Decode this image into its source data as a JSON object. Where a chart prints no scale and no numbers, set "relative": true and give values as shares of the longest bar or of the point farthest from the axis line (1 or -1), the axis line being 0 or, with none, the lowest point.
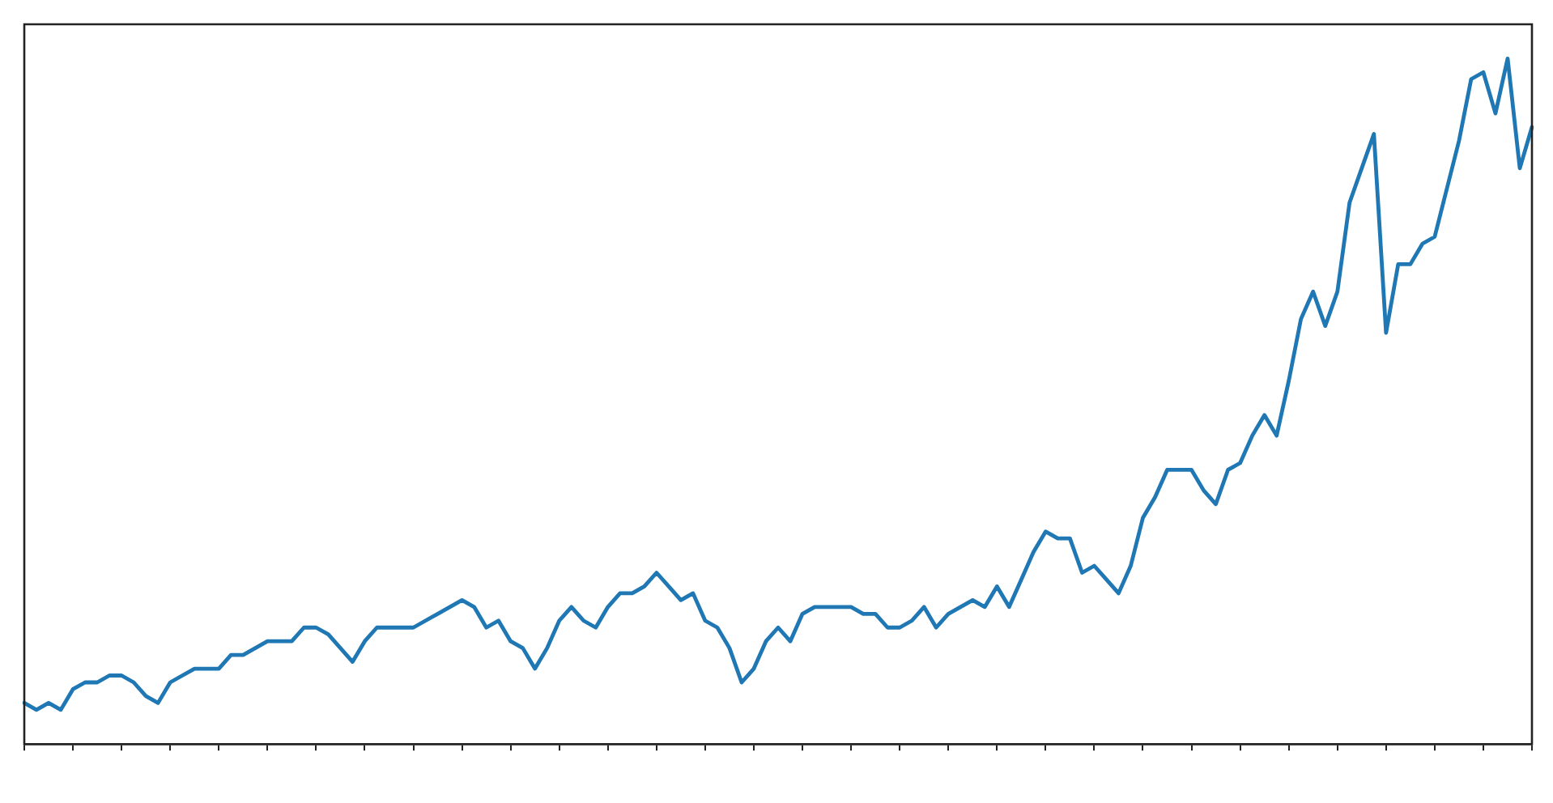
{
  "chart_data": {
    "type": "line",
    "relative": true,
    "legend": false,
    "grid": false,
    "marker": "none",
    "line_style": "solid",
    "categories": [
      null,
      null,
      null,
      null,
      null,
      null,
      null,
      null,
      null,
      null,
      null,
      null,
      null,
      null,
      null,
      null,
      null,
      null,
      null,
      null,
      null,
      null,
      null,
      null,
      null,
      null,
      null,
      null,
      null,
      null,
      null,
      null,
      null,
      null,
      null,
      null,
      null,
      null,
      null,
      null,
      null,
      null,
      null,
      null,
      null,
      null,
      null,
      null,
      null,
      null,
      null,
      null,
      null,
      null,
      null,
      null,
      null,
      null,
      null,
      null,
      null,
      null,
      null,
      null,
      null,
      null,
      null,
      null,
      null,
      null,
      null,
      null,
      null,
      null,
      null,
      null,
      null,
      null,
      null,
      null,
      null,
      null,
      null,
      null,
      null,
      null,
      null,
      null,
      null,
      null,
      null,
      null,
      null,
      null,
      null,
      null,
      null,
      null,
      null,
      null,
      null,
      null,
      null,
      null,
      null,
      null,
      null,
      null,
      null,
      null,
      null,
      null,
      null,
      null,
      null,
      null,
      null,
      null,
      null,
      null,
      null,
      null,
      null,
      null,
      null
    ],
    "series": [
      {
        "color": "#1f77b4",
        "values": [
          0.06,
          0.05,
          0.06,
          0.05,
          0.08,
          0.09,
          0.09,
          0.1,
          0.1,
          0.09,
          0.07,
          0.06,
          0.09,
          0.1,
          0.11,
          0.11,
          0.11,
          0.13,
          0.13,
          0.14,
          0.15,
          0.15,
          0.15,
          0.17,
          0.17,
          0.16,
          0.14,
          0.12,
          0.15,
          0.17,
          0.17,
          0.17,
          0.17,
          0.18,
          0.19,
          0.2,
          0.21,
          0.2,
          0.17,
          0.18,
          0.15,
          0.14,
          0.11,
          0.14,
          0.18,
          0.2,
          0.18,
          0.17,
          0.2,
          0.22,
          0.22,
          0.23,
          0.25,
          0.23,
          0.21,
          0.22,
          0.18,
          0.17,
          0.14,
          0.09,
          0.11,
          0.15,
          0.17,
          0.15,
          0.19,
          0.2,
          0.2,
          0.2,
          0.2,
          0.19,
          0.19,
          0.17,
          0.17,
          0.18,
          0.2,
          0.17,
          0.19,
          0.2,
          0.21,
          0.2,
          0.23,
          0.2,
          0.24,
          0.28,
          0.31,
          0.3,
          0.3,
          0.25,
          0.26,
          0.24,
          0.22,
          0.26,
          0.33,
          0.36,
          0.4,
          0.4,
          0.4,
          0.37,
          0.35,
          0.4,
          0.41,
          0.45,
          0.48,
          0.45,
          0.53,
          0.62,
          0.66,
          0.61,
          0.66,
          0.79,
          0.84,
          0.89,
          0.6,
          0.7,
          0.7,
          0.73,
          0.74,
          0.81,
          0.88,
          0.97,
          0.98,
          0.92,
          1,
          0.84,
          0.9
        ]
      }
    ]
  }
}
